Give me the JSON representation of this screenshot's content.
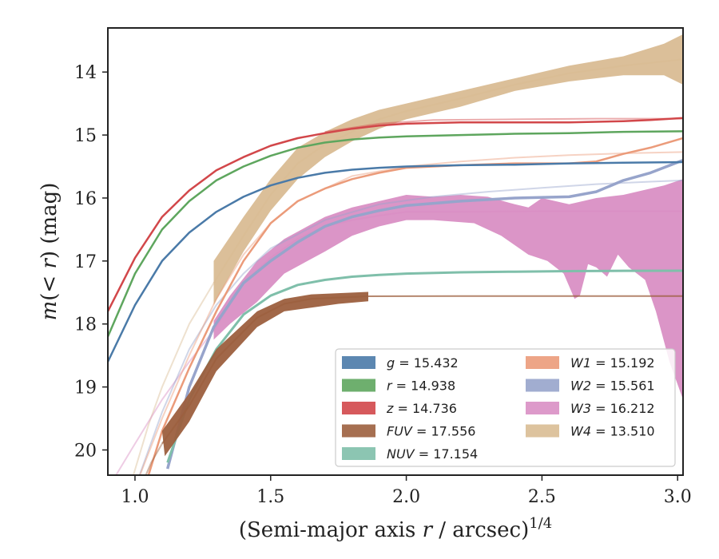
{
  "chart_data": {
    "type": "line",
    "xlabel_main": "(Semi-major axis ",
    "xlabel_var": "r",
    "xlabel_unit": " / arcsec)",
    "xlabel_exp": "1/4",
    "ylabel_m": "m",
    "ylabel_inner": "(< ",
    "ylabel_r": "r",
    "ylabel_close": ") (mag)",
    "xlim": [
      0.9,
      3.02
    ],
    "ylim": [
      20.4,
      13.3
    ],
    "y_inverted": true,
    "grid": false,
    "legend_position": "lower-right",
    "xticks": [
      {
        "value": 1.0,
        "label": "1.0"
      },
      {
        "value": 1.5,
        "label": "1.5"
      },
      {
        "value": 2.0,
        "label": "2.0"
      },
      {
        "value": 2.5,
        "label": "2.5"
      },
      {
        "value": 3.0,
        "label": "3.0"
      }
    ],
    "yticks": [
      {
        "value": 14,
        "label": "14"
      },
      {
        "value": 15,
        "label": "15"
      },
      {
        "value": 16,
        "label": "16"
      },
      {
        "value": 17,
        "label": "17"
      },
      {
        "value": 18,
        "label": "18"
      },
      {
        "value": 19,
        "label": "19"
      },
      {
        "value": 20,
        "label": "20"
      }
    ],
    "series": [
      {
        "name": "W4",
        "legend_value": "= 13.510",
        "color": "#d9bc94",
        "kind": "band",
        "upper": [
          [
            1.29,
            17.0
          ],
          [
            1.4,
            16.3
          ],
          [
            1.5,
            15.7
          ],
          [
            1.6,
            15.2
          ],
          [
            1.7,
            14.95
          ],
          [
            1.8,
            14.75
          ],
          [
            1.9,
            14.6
          ],
          [
            2.0,
            14.5
          ],
          [
            2.2,
            14.3
          ],
          [
            2.4,
            14.1
          ],
          [
            2.6,
            13.9
          ],
          [
            2.8,
            13.75
          ],
          [
            2.95,
            13.55
          ],
          [
            3.02,
            13.4
          ]
        ],
        "lower": [
          [
            3.02,
            14.2
          ],
          [
            2.95,
            14.05
          ],
          [
            2.8,
            14.05
          ],
          [
            2.6,
            14.15
          ],
          [
            2.4,
            14.3
          ],
          [
            2.2,
            14.55
          ],
          [
            2.0,
            14.75
          ],
          [
            1.9,
            14.9
          ],
          [
            1.8,
            15.1
          ],
          [
            1.7,
            15.35
          ],
          [
            1.6,
            15.7
          ],
          [
            1.5,
            16.2
          ],
          [
            1.4,
            16.85
          ],
          [
            1.29,
            17.7
          ]
        ],
        "line": [
          [
            1.29,
            17.35
          ],
          [
            1.4,
            16.6
          ],
          [
            1.5,
            15.95
          ],
          [
            1.6,
            15.45
          ],
          [
            1.7,
            15.15
          ],
          [
            1.8,
            14.95
          ],
          [
            1.9,
            14.75
          ],
          [
            2.0,
            14.62
          ],
          [
            2.2,
            14.42
          ],
          [
            2.4,
            14.2
          ],
          [
            2.6,
            14.02
          ],
          [
            2.8,
            13.9
          ],
          [
            3.02,
            13.8
          ]
        ],
        "faint_line": [
          [
            0.98,
            20.6
          ],
          [
            1.05,
            19.6
          ],
          [
            1.1,
            19.0
          ],
          [
            1.15,
            18.5
          ],
          [
            1.2,
            18.0
          ],
          [
            1.29,
            17.35
          ]
        ]
      },
      {
        "name": "W3",
        "legend_value": "= 16.212",
        "color": "#d98fc4",
        "kind": "band",
        "upper": [
          [
            1.29,
            17.95
          ],
          [
            1.35,
            17.55
          ],
          [
            1.45,
            17.0
          ],
          [
            1.55,
            16.65
          ],
          [
            1.7,
            16.3
          ],
          [
            1.8,
            16.15
          ],
          [
            1.9,
            16.05
          ],
          [
            2.0,
            15.95
          ],
          [
            2.1,
            15.98
          ],
          [
            2.2,
            15.95
          ],
          [
            2.3,
            15.98
          ],
          [
            2.4,
            16.1
          ],
          [
            2.45,
            16.15
          ],
          [
            2.5,
            16.0
          ],
          [
            2.6,
            16.1
          ],
          [
            2.7,
            16.0
          ],
          [
            2.8,
            15.95
          ],
          [
            2.9,
            15.85
          ],
          [
            2.95,
            15.8
          ],
          [
            3.02,
            15.7
          ]
        ],
        "lower": [
          [
            3.02,
            19.2
          ],
          [
            2.97,
            18.6
          ],
          [
            2.92,
            17.8
          ],
          [
            2.88,
            17.3
          ],
          [
            2.82,
            17.1
          ],
          [
            2.78,
            16.9
          ],
          [
            2.74,
            17.25
          ],
          [
            2.7,
            17.1
          ],
          [
            2.67,
            17.05
          ],
          [
            2.64,
            17.55
          ],
          [
            2.62,
            17.6
          ],
          [
            2.58,
            17.2
          ],
          [
            2.52,
            17.0
          ],
          [
            2.45,
            16.9
          ],
          [
            2.35,
            16.6
          ],
          [
            2.25,
            16.4
          ],
          [
            2.1,
            16.35
          ],
          [
            2.0,
            16.35
          ],
          [
            1.9,
            16.45
          ],
          [
            1.8,
            16.6
          ],
          [
            1.7,
            16.85
          ],
          [
            1.55,
            17.2
          ],
          [
            1.45,
            17.65
          ],
          [
            1.35,
            18.0
          ],
          [
            1.29,
            18.25
          ]
        ],
        "line": [
          [
            1.29,
            18.1
          ],
          [
            1.4,
            17.35
          ],
          [
            1.5,
            16.95
          ],
          [
            1.6,
            16.65
          ],
          [
            1.7,
            16.45
          ],
          [
            1.8,
            16.35
          ],
          [
            1.9,
            16.28
          ],
          [
            2.0,
            16.22
          ],
          [
            2.2,
            16.22
          ],
          [
            2.5,
            16.21
          ],
          [
            3.02,
            16.21
          ]
        ],
        "faint_line": [
          [
            0.93,
            20.4
          ],
          [
            1.0,
            19.9
          ],
          [
            1.1,
            19.2
          ],
          [
            1.2,
            18.6
          ],
          [
            1.29,
            18.1
          ]
        ]
      },
      {
        "name": "W2",
        "legend_value": "= 15.561",
        "color": "#97a4cb",
        "kind": "line",
        "width": 3.5,
        "line": [
          [
            1.12,
            20.3
          ],
          [
            1.2,
            19.0
          ],
          [
            1.29,
            18.05
          ],
          [
            1.4,
            17.35
          ],
          [
            1.5,
            17.0
          ],
          [
            1.6,
            16.7
          ],
          [
            1.7,
            16.45
          ],
          [
            1.8,
            16.3
          ],
          [
            1.9,
            16.2
          ],
          [
            2.0,
            16.12
          ],
          [
            2.2,
            16.05
          ],
          [
            2.4,
            16.0
          ],
          [
            2.6,
            15.98
          ],
          [
            2.7,
            15.9
          ],
          [
            2.8,
            15.72
          ],
          [
            2.9,
            15.6
          ],
          [
            3.02,
            15.4
          ]
        ],
        "faint_line": [
          [
            1.0,
            20.6
          ],
          [
            1.1,
            19.4
          ],
          [
            1.2,
            18.4
          ],
          [
            1.3,
            17.7
          ],
          [
            1.4,
            17.2
          ],
          [
            1.5,
            16.8
          ],
          [
            1.7,
            16.35
          ],
          [
            1.9,
            16.1
          ],
          [
            2.1,
            15.98
          ],
          [
            2.3,
            15.9
          ],
          [
            2.5,
            15.84
          ],
          [
            2.7,
            15.78
          ],
          [
            2.9,
            15.74
          ],
          [
            3.02,
            15.72
          ]
        ]
      },
      {
        "name": "W1",
        "legend_value": "= 15.192",
        "color": "#eb9b7a",
        "kind": "line",
        "width": 2.5,
        "line": [
          [
            1.05,
            20.4
          ],
          [
            1.1,
            19.7
          ],
          [
            1.2,
            18.7
          ],
          [
            1.3,
            17.8
          ],
          [
            1.4,
            17.0
          ],
          [
            1.5,
            16.4
          ],
          [
            1.6,
            16.05
          ],
          [
            1.7,
            15.85
          ],
          [
            1.8,
            15.7
          ],
          [
            1.9,
            15.6
          ],
          [
            2.0,
            15.52
          ],
          [
            2.2,
            15.48
          ],
          [
            2.4,
            15.45
          ],
          [
            2.6,
            15.45
          ],
          [
            2.7,
            15.42
          ],
          [
            2.8,
            15.3
          ],
          [
            2.9,
            15.2
          ],
          [
            3.02,
            15.05
          ]
        ],
        "faint_line": [
          [
            1.0,
            20.6
          ],
          [
            1.1,
            19.5
          ],
          [
            1.2,
            18.5
          ],
          [
            1.3,
            17.6
          ],
          [
            1.4,
            16.9
          ],
          [
            1.5,
            16.4
          ],
          [
            1.6,
            16.05
          ],
          [
            1.8,
            15.65
          ],
          [
            2.0,
            15.5
          ],
          [
            2.2,
            15.42
          ],
          [
            2.4,
            15.36
          ],
          [
            2.6,
            15.32
          ],
          [
            2.8,
            15.29
          ],
          [
            3.02,
            15.27
          ]
        ]
      },
      {
        "name": "g",
        "legend_value": "= 15.432",
        "color": "#4a7aa8",
        "kind": "line",
        "width": 2.5,
        "line": [
          [
            0.9,
            18.6
          ],
          [
            1.0,
            17.7
          ],
          [
            1.1,
            17.0
          ],
          [
            1.2,
            16.55
          ],
          [
            1.3,
            16.22
          ],
          [
            1.4,
            15.98
          ],
          [
            1.5,
            15.8
          ],
          [
            1.6,
            15.68
          ],
          [
            1.7,
            15.6
          ],
          [
            1.8,
            15.55
          ],
          [
            1.9,
            15.52
          ],
          [
            2.0,
            15.5
          ],
          [
            2.2,
            15.48
          ],
          [
            2.4,
            15.47
          ],
          [
            2.6,
            15.45
          ],
          [
            2.8,
            15.44
          ],
          [
            3.02,
            15.43
          ]
        ],
        "faint_line": []
      },
      {
        "name": "r",
        "legend_value": "= 14.938",
        "color": "#5ea65e",
        "kind": "line",
        "width": 2.5,
        "line": [
          [
            0.9,
            18.2
          ],
          [
            1.0,
            17.2
          ],
          [
            1.1,
            16.5
          ],
          [
            1.2,
            16.05
          ],
          [
            1.3,
            15.72
          ],
          [
            1.4,
            15.5
          ],
          [
            1.5,
            15.33
          ],
          [
            1.6,
            15.2
          ],
          [
            1.7,
            15.12
          ],
          [
            1.8,
            15.07
          ],
          [
            1.9,
            15.04
          ],
          [
            2.0,
            15.02
          ],
          [
            2.2,
            15.0
          ],
          [
            2.4,
            14.98
          ],
          [
            2.6,
            14.97
          ],
          [
            2.8,
            14.95
          ],
          [
            3.02,
            14.94
          ]
        ],
        "faint_line": []
      },
      {
        "name": "z",
        "legend_value": "= 14.736",
        "color": "#d2474a",
        "kind": "line",
        "width": 2.5,
        "line": [
          [
            0.9,
            17.8
          ],
          [
            1.0,
            16.95
          ],
          [
            1.1,
            16.3
          ],
          [
            1.2,
            15.88
          ],
          [
            1.3,
            15.56
          ],
          [
            1.4,
            15.35
          ],
          [
            1.5,
            15.17
          ],
          [
            1.6,
            15.05
          ],
          [
            1.7,
            14.97
          ],
          [
            1.8,
            14.9
          ],
          [
            1.9,
            14.85
          ],
          [
            2.0,
            14.82
          ],
          [
            2.2,
            14.8
          ],
          [
            2.4,
            14.8
          ],
          [
            2.6,
            14.8
          ],
          [
            2.8,
            14.78
          ],
          [
            2.9,
            14.76
          ],
          [
            3.02,
            14.73
          ]
        ],
        "faint_line": [
          [
            1.7,
            14.95
          ],
          [
            1.9,
            14.82
          ],
          [
            2.1,
            14.76
          ],
          [
            2.4,
            14.75
          ],
          [
            2.7,
            14.74
          ],
          [
            3.02,
            14.74
          ]
        ]
      },
      {
        "name": "NUV",
        "legend_value": "= 17.154",
        "color": "#7fbfaa",
        "kind": "line",
        "width": 3,
        "line": [
          [
            1.12,
            20.2
          ],
          [
            1.2,
            19.2
          ],
          [
            1.3,
            18.4
          ],
          [
            1.4,
            17.85
          ],
          [
            1.5,
            17.55
          ],
          [
            1.6,
            17.38
          ],
          [
            1.7,
            17.3
          ],
          [
            1.8,
            17.25
          ],
          [
            1.9,
            17.22
          ],
          [
            2.0,
            17.2
          ],
          [
            2.2,
            17.18
          ],
          [
            2.4,
            17.17
          ],
          [
            2.6,
            17.16
          ],
          [
            2.8,
            17.155
          ],
          [
            3.02,
            17.154
          ]
        ],
        "faint_line": []
      },
      {
        "name": "FUV",
        "legend_value": "= 17.556",
        "color": "#9c5f3e",
        "kind": "band",
        "upper": [
          [
            1.1,
            19.7
          ],
          [
            1.2,
            19.1
          ],
          [
            1.3,
            18.4
          ],
          [
            1.45,
            17.8
          ],
          [
            1.55,
            17.6
          ],
          [
            1.65,
            17.53
          ],
          [
            1.75,
            17.51
          ],
          [
            1.86,
            17.49
          ]
        ],
        "lower": [
          [
            1.86,
            17.64
          ],
          [
            1.75,
            17.68
          ],
          [
            1.65,
            17.74
          ],
          [
            1.55,
            17.8
          ],
          [
            1.45,
            18.05
          ],
          [
            1.3,
            18.75
          ],
          [
            1.2,
            19.55
          ],
          [
            1.11,
            20.1
          ]
        ],
        "line": [
          [
            1.1,
            19.9
          ],
          [
            1.2,
            19.3
          ],
          [
            1.3,
            18.55
          ],
          [
            1.45,
            17.9
          ],
          [
            1.55,
            17.68
          ],
          [
            1.65,
            17.6
          ],
          [
            1.75,
            17.58
          ],
          [
            1.86,
            17.56
          ],
          [
            2.2,
            17.556
          ],
          [
            2.6,
            17.556
          ],
          [
            3.02,
            17.556
          ]
        ],
        "faint_line": [
          [
            1.02,
            20.6
          ],
          [
            1.06,
            20.2
          ],
          [
            1.1,
            19.9
          ]
        ]
      }
    ],
    "legend_columns": [
      [
        "g",
        "r",
        "z",
        "FUV",
        "NUV"
      ],
      [
        "W1",
        "W2",
        "W3",
        "W4"
      ]
    ]
  }
}
